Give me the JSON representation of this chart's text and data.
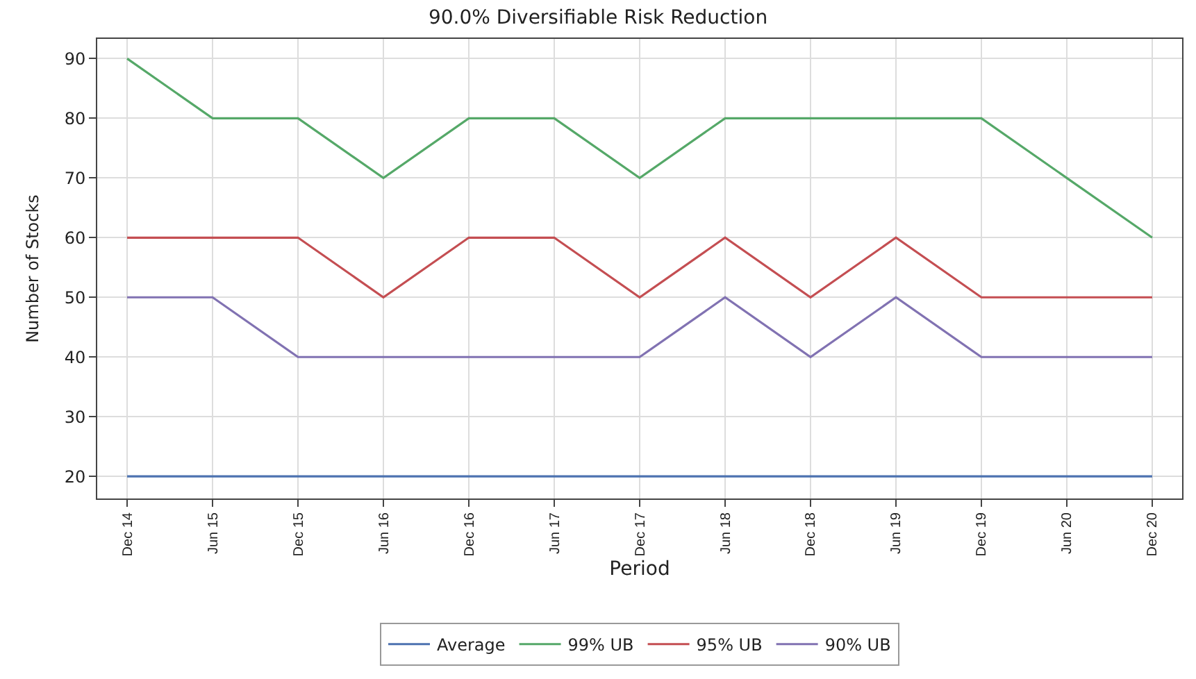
{
  "chart_data": {
    "type": "line",
    "title": "90.0% Diversifiable Risk Reduction",
    "xlabel": "Period",
    "ylabel": "Number of Stocks",
    "categories": [
      "Dec 14",
      "Jun 15",
      "Dec 15",
      "Jun 16",
      "Dec 16",
      "Jun 17",
      "Dec 17",
      "Jun 18",
      "Dec 18",
      "Jun 19",
      "Dec 19",
      "Jun 20",
      "Dec 20"
    ],
    "series": [
      {
        "name": "Average",
        "color": "#4c72b0",
        "values": [
          20,
          20,
          20,
          20,
          20,
          20,
          20,
          20,
          20,
          20,
          20,
          20,
          20
        ]
      },
      {
        "name": "99% UB",
        "color": "#55a868",
        "values": [
          90,
          80,
          80,
          70,
          80,
          80,
          70,
          80,
          80,
          80,
          80,
          70,
          60
        ]
      },
      {
        "name": "95% UB",
        "color": "#c44e52",
        "values": [
          60,
          60,
          60,
          50,
          60,
          60,
          50,
          60,
          50,
          60,
          50,
          50,
          50
        ]
      },
      {
        "name": "90% UB",
        "color": "#8172b2",
        "values": [
          50,
          50,
          40,
          40,
          40,
          40,
          40,
          50,
          40,
          50,
          40,
          40,
          40
        ]
      }
    ],
    "ylim": [
      16.3,
      93.3
    ],
    "yticks": [
      20,
      30,
      40,
      50,
      60,
      70,
      80,
      90
    ],
    "grid": true,
    "legend": "bottom",
    "marker": "none",
    "line_style": "solid"
  }
}
